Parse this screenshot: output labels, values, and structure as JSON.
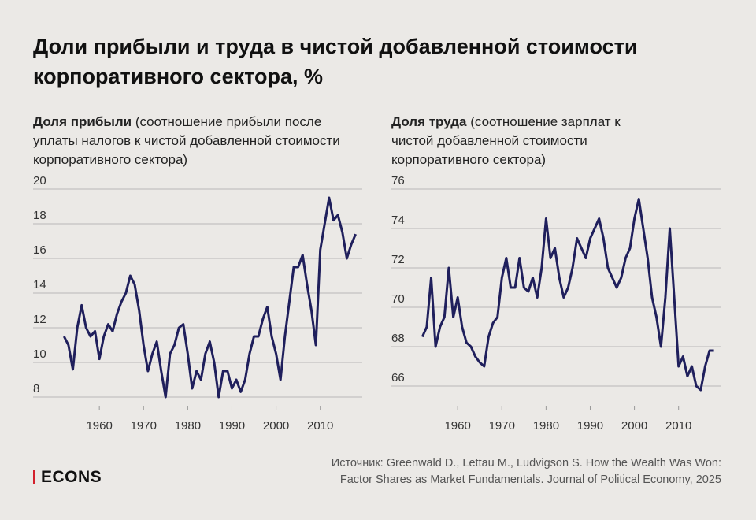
{
  "title": "Доли прибыли и труда в чистой добавленной стоимости корпоративного сектора, %",
  "logo": "ECONS",
  "source": [
    "Источник: Greenwald D., Lettau M., Ludvigson S. How the Wealth Was Won:",
    "Factor Shares as Market Fundamentals. Journal of Political Economy, 2025"
  ],
  "chart_data": [
    {
      "type": "line",
      "title": "Доля прибыли",
      "subtitle": "(соотношение прибыли после уплаты налогов к чистой добавленной стоимости корпоративного сектора)",
      "x": [
        1952,
        1953,
        1954,
        1955,
        1956,
        1957,
        1958,
        1959,
        1960,
        1961,
        1962,
        1963,
        1964,
        1965,
        1966,
        1967,
        1968,
        1969,
        1970,
        1971,
        1972,
        1973,
        1974,
        1975,
        1976,
        1977,
        1978,
        1979,
        1980,
        1981,
        1982,
        1983,
        1984,
        1985,
        1986,
        1987,
        1988,
        1989,
        1990,
        1991,
        1992,
        1993,
        1994,
        1995,
        1996,
        1997,
        1998,
        1999,
        2000,
        2001,
        2002,
        2003,
        2004,
        2005,
        2006,
        2007,
        2008,
        2009,
        2010,
        2011,
        2012,
        2013,
        2014,
        2015,
        2016,
        2017,
        2018
      ],
      "series": [
        {
          "color": "#1f1f5c",
          "values": [
            11.5,
            11.0,
            9.6,
            12.0,
            13.3,
            12.0,
            11.5,
            11.8,
            10.2,
            11.5,
            12.2,
            11.8,
            12.8,
            13.5,
            14.0,
            15.0,
            14.5,
            13.0,
            11.0,
            9.5,
            10.5,
            11.2,
            9.5,
            8.0,
            10.5,
            11.0,
            12.0,
            12.2,
            10.5,
            8.5,
            9.5,
            9.0,
            10.5,
            11.2,
            10.0,
            8.0,
            9.5,
            9.5,
            8.5,
            9.0,
            8.3,
            9.0,
            10.5,
            11.5,
            11.5,
            12.5,
            13.2,
            11.5,
            10.5,
            9.0,
            11.5,
            13.5,
            15.5,
            15.5,
            16.2,
            14.5,
            13.0,
            11.0,
            16.5,
            18.0,
            19.5,
            18.2,
            18.5,
            17.5,
            16.0,
            16.8,
            17.4
          ]
        }
      ],
      "xlim": [
        1945,
        2019.5
      ],
      "xticks": [
        1960,
        1970,
        1980,
        1990,
        2000,
        2010
      ],
      "ylim": [
        7.5,
        20
      ],
      "yticks": [
        8,
        10,
        12,
        14,
        16,
        18,
        20
      ],
      "grid": true
    },
    {
      "type": "line",
      "title": "Доля труда",
      "subtitle": "(соотношение зарплат к чистой добавленной стоимости корпоративного сектора)",
      "x": [
        1952,
        1953,
        1954,
        1955,
        1956,
        1957,
        1958,
        1959,
        1960,
        1961,
        1962,
        1963,
        1964,
        1965,
        1966,
        1967,
        1968,
        1969,
        1970,
        1971,
        1972,
        1973,
        1974,
        1975,
        1976,
        1977,
        1978,
        1979,
        1980,
        1981,
        1982,
        1983,
        1984,
        1985,
        1986,
        1987,
        1988,
        1989,
        1990,
        1991,
        1992,
        1993,
        1994,
        1995,
        1996,
        1997,
        1998,
        1999,
        2000,
        2001,
        2002,
        2003,
        2004,
        2005,
        2006,
        2007,
        2008,
        2009,
        2010,
        2011,
        2012,
        2013,
        2014,
        2015,
        2016,
        2017,
        2018
      ],
      "series": [
        {
          "color": "#1f1f5c",
          "values": [
            68.5,
            69.0,
            71.5,
            68.0,
            69.0,
            69.5,
            72.0,
            69.5,
            70.5,
            69.0,
            68.2,
            68.0,
            67.5,
            67.2,
            67.0,
            68.5,
            69.2,
            69.5,
            71.5,
            72.5,
            71.0,
            71.0,
            72.5,
            71.0,
            70.8,
            71.5,
            70.5,
            72.0,
            74.5,
            72.5,
            73.0,
            71.5,
            70.5,
            71.0,
            72.0,
            73.5,
            73.0,
            72.5,
            73.5,
            74.0,
            74.5,
            73.5,
            72.0,
            71.5,
            71.0,
            71.5,
            72.5,
            73.0,
            74.5,
            75.5,
            74.0,
            72.5,
            70.5,
            69.5,
            68.0,
            70.5,
            74.0,
            70.5,
            67.0,
            67.5,
            66.5,
            67.0,
            66.0,
            65.8,
            67.0,
            67.8,
            67.8
          ]
        }
      ],
      "xlim": [
        1945,
        2019.5
      ],
      "xticks": [
        1960,
        1970,
        1980,
        1990,
        2000,
        2010
      ],
      "ylim": [
        65,
        76
      ],
      "yticks": [
        66,
        68,
        70,
        72,
        74,
        76
      ],
      "grid": true
    }
  ]
}
